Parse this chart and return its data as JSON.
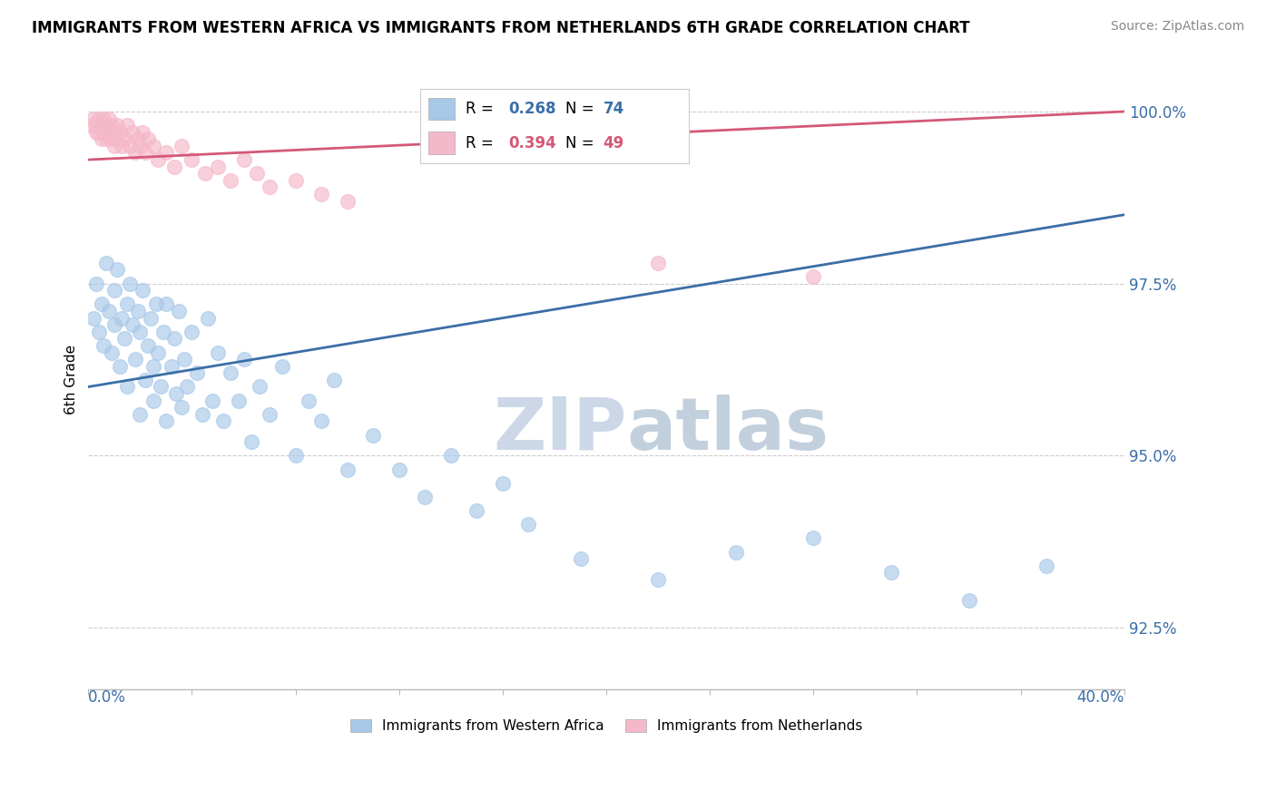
{
  "title": "IMMIGRANTS FROM WESTERN AFRICA VS IMMIGRANTS FROM NETHERLANDS 6TH GRADE CORRELATION CHART",
  "source": "Source: ZipAtlas.com",
  "ylabel": "6th Grade",
  "ytick_labels": [
    "92.5%",
    "95.0%",
    "97.5%",
    "100.0%"
  ],
  "ytick_values": [
    0.925,
    0.95,
    0.975,
    1.0
  ],
  "xlim": [
    0.0,
    0.4
  ],
  "ylim": [
    0.916,
    1.006
  ],
  "legend_blue": "Immigrants from Western Africa",
  "legend_pink": "Immigrants from Netherlands",
  "R_blue": 0.268,
  "N_blue": 74,
  "R_pink": 0.394,
  "N_pink": 49,
  "blue_color": "#a8c8e8",
  "blue_line_color": "#3a6ea8",
  "pink_color": "#f5b8c8",
  "pink_line_color": "#d45878",
  "blue_scatter_x": [
    0.002,
    0.003,
    0.004,
    0.005,
    0.006,
    0.007,
    0.008,
    0.009,
    0.01,
    0.01,
    0.011,
    0.012,
    0.013,
    0.014,
    0.015,
    0.015,
    0.016,
    0.017,
    0.018,
    0.019,
    0.02,
    0.02,
    0.021,
    0.022,
    0.023,
    0.024,
    0.025,
    0.025,
    0.026,
    0.027,
    0.028,
    0.029,
    0.03,
    0.03,
    0.032,
    0.033,
    0.034,
    0.035,
    0.036,
    0.037,
    0.038,
    0.04,
    0.042,
    0.044,
    0.046,
    0.048,
    0.05,
    0.052,
    0.055,
    0.058,
    0.06,
    0.063,
    0.066,
    0.07,
    0.075,
    0.08,
    0.085,
    0.09,
    0.095,
    0.1,
    0.11,
    0.12,
    0.13,
    0.14,
    0.15,
    0.16,
    0.17,
    0.19,
    0.22,
    0.25,
    0.28,
    0.31,
    0.34,
    0.37
  ],
  "blue_scatter_y": [
    0.97,
    0.975,
    0.968,
    0.972,
    0.966,
    0.978,
    0.971,
    0.965,
    0.974,
    0.969,
    0.977,
    0.963,
    0.97,
    0.967,
    0.972,
    0.96,
    0.975,
    0.969,
    0.964,
    0.971,
    0.968,
    0.956,
    0.974,
    0.961,
    0.966,
    0.97,
    0.963,
    0.958,
    0.972,
    0.965,
    0.96,
    0.968,
    0.955,
    0.972,
    0.963,
    0.967,
    0.959,
    0.971,
    0.957,
    0.964,
    0.96,
    0.968,
    0.962,
    0.956,
    0.97,
    0.958,
    0.965,
    0.955,
    0.962,
    0.958,
    0.964,
    0.952,
    0.96,
    0.956,
    0.963,
    0.95,
    0.958,
    0.955,
    0.961,
    0.948,
    0.953,
    0.948,
    0.944,
    0.95,
    0.942,
    0.946,
    0.94,
    0.935,
    0.932,
    0.936,
    0.938,
    0.933,
    0.929,
    0.934
  ],
  "pink_scatter_x": [
    0.001,
    0.002,
    0.003,
    0.003,
    0.004,
    0.004,
    0.005,
    0.005,
    0.006,
    0.006,
    0.007,
    0.007,
    0.008,
    0.008,
    0.009,
    0.009,
    0.01,
    0.01,
    0.011,
    0.011,
    0.012,
    0.013,
    0.014,
    0.015,
    0.016,
    0.017,
    0.018,
    0.019,
    0.02,
    0.021,
    0.022,
    0.023,
    0.025,
    0.027,
    0.03,
    0.033,
    0.036,
    0.04,
    0.045,
    0.05,
    0.055,
    0.06,
    0.065,
    0.07,
    0.08,
    0.09,
    0.1,
    0.22,
    0.28
  ],
  "pink_scatter_y": [
    0.998,
    0.999,
    0.997,
    0.998,
    0.999,
    0.997,
    0.998,
    0.996,
    0.997,
    0.999,
    0.998,
    0.996,
    0.997,
    0.999,
    0.996,
    0.998,
    0.997,
    0.995,
    0.998,
    0.996,
    0.997,
    0.995,
    0.996,
    0.998,
    0.995,
    0.997,
    0.994,
    0.996,
    0.995,
    0.997,
    0.994,
    0.996,
    0.995,
    0.993,
    0.994,
    0.992,
    0.995,
    0.993,
    0.991,
    0.992,
    0.99,
    0.993,
    0.991,
    0.989,
    0.99,
    0.988,
    0.987,
    0.978,
    0.976
  ],
  "blue_trend_x": [
    0.0,
    0.4
  ],
  "blue_trend_y": [
    0.96,
    0.985
  ],
  "pink_trend_x": [
    0.0,
    0.4
  ],
  "pink_trend_y": [
    0.993,
    1.0
  ],
  "background_color": "#ffffff",
  "grid_color": "#cccccc",
  "watermark_text1": "ZIP",
  "watermark_text2": "atlas",
  "watermark_color": "#ccd8e8"
}
